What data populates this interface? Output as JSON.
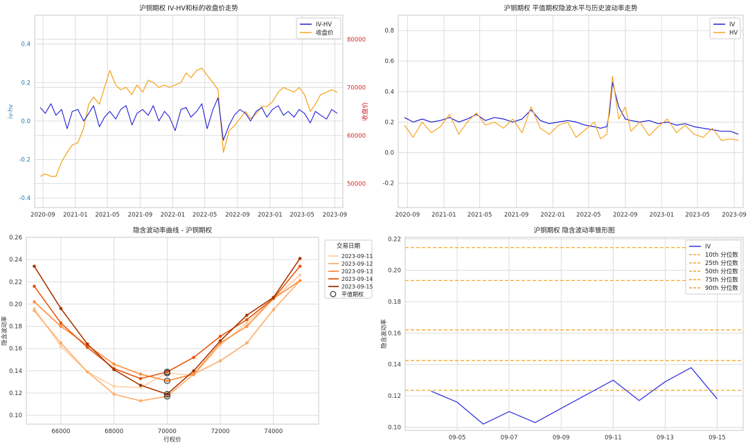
{
  "chart_data": [
    {
      "type": "line",
      "title": "沪铜期权 IV-HV和标的收盘价走势",
      "ylabel": "iv-hv",
      "y2label": "收盘价",
      "ylim": [
        -0.45,
        0.55
      ],
      "y2lim": [
        45000,
        85000
      ],
      "yticks": [
        -0.4,
        -0.2,
        0.0,
        0.2,
        0.4
      ],
      "y2ticks": [
        50000,
        60000,
        70000,
        80000
      ],
      "xlim": [
        "2020-08-01",
        "2023-10-01"
      ],
      "xticks": [
        "2020-09",
        "2021-01",
        "2021-05",
        "2021-09",
        "2022-01",
        "2022-05",
        "2022-09",
        "2023-01",
        "2023-05",
        "2023-09"
      ],
      "legend_position": "top-right",
      "colors": {
        "IV-HV": "#1f1fd6",
        "收盘价": "#f5a623",
        "axis_left": "#1f77b4",
        "axis_right": "#d62728"
      },
      "series": [
        {
          "name": "IV-HV",
          "axis": "left",
          "x": [
            "2020-08-22",
            "2020-09-10",
            "2020-10-01",
            "2020-10-20",
            "2020-11-10",
            "2020-12-01",
            "2020-12-20",
            "2021-01-10",
            "2021-02-01",
            "2021-02-20",
            "2021-03-10",
            "2021-04-01",
            "2021-04-20",
            "2021-05-10",
            "2021-06-01",
            "2021-06-20",
            "2021-07-10",
            "2021-08-01",
            "2021-08-20",
            "2021-09-10",
            "2021-10-01",
            "2021-10-20",
            "2021-11-10",
            "2021-12-01",
            "2021-12-20",
            "2022-01-10",
            "2022-02-01",
            "2022-02-20",
            "2022-03-10",
            "2022-04-01",
            "2022-04-20",
            "2022-05-10",
            "2022-06-01",
            "2022-06-20",
            "2022-07-10",
            "2022-08-01",
            "2022-08-20",
            "2022-09-10",
            "2022-10-01",
            "2022-10-20",
            "2022-11-10",
            "2022-12-01",
            "2022-12-20",
            "2023-01-10",
            "2023-02-01",
            "2023-02-20",
            "2023-03-10",
            "2023-04-01",
            "2023-04-20",
            "2023-05-10",
            "2023-06-01",
            "2023-06-20",
            "2023-07-10",
            "2023-08-01",
            "2023-08-20",
            "2023-09-10"
          ],
          "values": [
            0.07,
            0.04,
            0.09,
            0.03,
            0.06,
            -0.04,
            0.05,
            0.06,
            0.0,
            0.04,
            0.08,
            -0.03,
            0.02,
            0.05,
            0.01,
            0.06,
            0.08,
            -0.02,
            0.04,
            0.06,
            0.03,
            0.08,
            0.0,
            0.05,
            0.02,
            -0.05,
            0.06,
            0.07,
            0.02,
            0.05,
            0.09,
            -0.04,
            0.06,
            0.12,
            -0.1,
            -0.02,
            0.03,
            0.06,
            0.04,
            0.0,
            0.05,
            0.07,
            0.02,
            0.06,
            0.08,
            0.03,
            0.05,
            0.02,
            0.06,
            0.04,
            -0.01,
            0.05,
            0.03,
            0.01,
            0.06,
            0.04
          ]
        },
        {
          "name": "收盘价",
          "axis": "right",
          "x": [
            "2020-08-22",
            "2020-09-10",
            "2020-10-01",
            "2020-10-20",
            "2020-11-10",
            "2020-12-01",
            "2020-12-20",
            "2021-01-10",
            "2021-02-01",
            "2021-02-20",
            "2021-03-10",
            "2021-04-01",
            "2021-04-20",
            "2021-05-10",
            "2021-06-01",
            "2021-06-20",
            "2021-07-10",
            "2021-08-01",
            "2021-08-20",
            "2021-09-10",
            "2021-10-01",
            "2021-10-20",
            "2021-11-10",
            "2021-12-01",
            "2021-12-20",
            "2022-01-10",
            "2022-02-01",
            "2022-02-20",
            "2022-03-10",
            "2022-04-01",
            "2022-04-20",
            "2022-05-10",
            "2022-06-01",
            "2022-06-20",
            "2022-07-10",
            "2022-08-01",
            "2022-08-20",
            "2022-09-10",
            "2022-10-01",
            "2022-10-20",
            "2022-11-10",
            "2022-12-01",
            "2022-12-20",
            "2023-01-10",
            "2023-02-01",
            "2023-02-20",
            "2023-03-10",
            "2023-04-01",
            "2023-04-20",
            "2023-05-10",
            "2023-06-01",
            "2023-06-20",
            "2023-07-10",
            "2023-08-01",
            "2023-08-20",
            "2023-09-10"
          ],
          "values": [
            51500,
            52000,
            51500,
            51500,
            54500,
            56500,
            58000,
            58500,
            61500,
            66500,
            68000,
            66500,
            70000,
            73500,
            70500,
            69500,
            70000,
            68500,
            70500,
            69000,
            71500,
            71000,
            70000,
            70500,
            70000,
            70500,
            71000,
            73000,
            72000,
            73500,
            74000,
            72500,
            71000,
            69500,
            56500,
            61000,
            62000,
            63500,
            65000,
            63500,
            64500,
            66000,
            66000,
            67000,
            69000,
            70000,
            69500,
            69000,
            70000,
            68500,
            65000,
            66500,
            68500,
            69000,
            69500,
            69000
          ]
        }
      ]
    },
    {
      "type": "line",
      "title": "沪铜期权 平值期权隐波水平与历史波动率走势",
      "ylim": [
        -0.36,
        0.9
      ],
      "yticks": [
        -0.2,
        0.0,
        0.2,
        0.4,
        0.6,
        0.8
      ],
      "xlim": [
        "2020-08-01",
        "2023-10-01"
      ],
      "xticks": [
        "2020-09",
        "2021-01",
        "2021-05",
        "2021-09",
        "2022-01",
        "2022-05",
        "2022-09",
        "2023-01",
        "2023-05",
        "2023-09"
      ],
      "legend_position": "top-right",
      "colors": {
        "IV": "#1f1fd6",
        "HV": "#f5a623"
      },
      "series": [
        {
          "name": "IV",
          "x": [
            "2020-08-22",
            "2020-09-20",
            "2020-10-20",
            "2020-11-20",
            "2020-12-20",
            "2021-01-20",
            "2021-02-20",
            "2021-03-20",
            "2021-04-20",
            "2021-05-20",
            "2021-06-20",
            "2021-07-20",
            "2021-08-20",
            "2021-09-20",
            "2021-10-20",
            "2021-11-20",
            "2021-12-20",
            "2022-01-20",
            "2022-02-20",
            "2022-03-20",
            "2022-04-20",
            "2022-05-20",
            "2022-06-10",
            "2022-07-01",
            "2022-07-10",
            "2022-07-20",
            "2022-08-10",
            "2022-09-01",
            "2022-09-20",
            "2022-10-20",
            "2022-11-20",
            "2022-12-20",
            "2023-01-20",
            "2023-02-20",
            "2023-03-20",
            "2023-04-20",
            "2023-05-20",
            "2023-06-20",
            "2023-07-20",
            "2023-08-20",
            "2023-09-15"
          ],
          "values": [
            0.23,
            0.2,
            0.22,
            0.2,
            0.21,
            0.23,
            0.2,
            0.22,
            0.25,
            0.21,
            0.23,
            0.22,
            0.2,
            0.22,
            0.28,
            0.21,
            0.19,
            0.2,
            0.21,
            0.2,
            0.18,
            0.17,
            0.16,
            0.17,
            0.26,
            0.46,
            0.3,
            0.22,
            0.21,
            0.2,
            0.21,
            0.19,
            0.2,
            0.18,
            0.19,
            0.17,
            0.16,
            0.15,
            0.14,
            0.14,
            0.12
          ]
        },
        {
          "name": "HV",
          "x": [
            "2020-08-22",
            "2020-09-20",
            "2020-10-20",
            "2020-11-20",
            "2020-12-20",
            "2021-01-20",
            "2021-02-20",
            "2021-03-20",
            "2021-04-20",
            "2021-05-20",
            "2021-06-20",
            "2021-07-20",
            "2021-08-20",
            "2021-09-20",
            "2021-10-20",
            "2021-11-20",
            "2021-12-20",
            "2022-01-20",
            "2022-02-20",
            "2022-03-20",
            "2022-04-20",
            "2022-05-20",
            "2022-06-10",
            "2022-07-01",
            "2022-07-10",
            "2022-07-20",
            "2022-08-10",
            "2022-09-01",
            "2022-09-20",
            "2022-10-20",
            "2022-11-20",
            "2022-12-20",
            "2023-01-20",
            "2023-02-20",
            "2023-03-20",
            "2023-04-20",
            "2023-05-20",
            "2023-06-20",
            "2023-07-20",
            "2023-08-20",
            "2023-09-15"
          ],
          "values": [
            0.18,
            0.1,
            0.2,
            0.13,
            0.17,
            0.25,
            0.12,
            0.2,
            0.26,
            0.18,
            0.2,
            0.16,
            0.22,
            0.13,
            0.3,
            0.16,
            0.12,
            0.18,
            0.2,
            0.1,
            0.15,
            0.2,
            0.09,
            0.12,
            0.3,
            0.5,
            0.22,
            0.3,
            0.14,
            0.2,
            0.11,
            0.17,
            0.22,
            0.13,
            0.18,
            0.12,
            0.1,
            0.16,
            0.08,
            0.09,
            0.08
          ]
        }
      ]
    },
    {
      "type": "line",
      "title": "隐含波动率曲线 - 沪铜期权",
      "xlabel": "行权价",
      "ylabel": "隐含波动率",
      "xlim": [
        64700,
        75700
      ],
      "ylim": [
        0.092,
        0.26
      ],
      "xticks": [
        66000,
        68000,
        70000,
        72000,
        74000
      ],
      "yticks": [
        0.1,
        0.12,
        0.14,
        0.16,
        0.18,
        0.2,
        0.22,
        0.24,
        0.26
      ],
      "legend_title": "交易日期",
      "legend_position": "outside-right",
      "atm_label": "平值期权",
      "strikes": [
        65000,
        66000,
        67000,
        68000,
        69000,
        70000,
        71000,
        72000,
        73000,
        74000,
        75000
      ],
      "atm_strike": 70000,
      "series": [
        {
          "name": "2023-09-11",
          "color": "#fdd0a2",
          "values": [
            0.196,
            0.162,
            0.139,
            0.126,
            0.125,
            0.138,
            0.136,
            0.163,
            0.183,
            0.205,
            0.226
          ]
        },
        {
          "name": "2023-09-12",
          "color": "#fdae6b",
          "values": [
            0.194,
            0.165,
            0.139,
            0.119,
            0.113,
            0.117,
            0.137,
            0.149,
            0.165,
            0.195,
            0.221
          ]
        },
        {
          "name": "2023-09-13",
          "color": "#fd8d3c",
          "values": [
            0.202,
            0.18,
            0.163,
            0.146,
            0.137,
            0.131,
            0.137,
            0.165,
            0.18,
            0.205,
            0.221
          ]
        },
        {
          "name": "2023-09-14",
          "color": "#e6550d",
          "values": [
            0.216,
            0.183,
            0.161,
            0.142,
            0.133,
            0.139,
            0.152,
            0.171,
            0.186,
            0.205,
            0.234
          ]
        },
        {
          "name": "2023-09-15",
          "color": "#a63603",
          "values": [
            0.234,
            0.196,
            0.164,
            0.141,
            0.127,
            0.119,
            0.14,
            0.167,
            0.19,
            0.206,
            0.241
          ]
        }
      ]
    },
    {
      "type": "line",
      "title": "沪铜期权 隐含波动率锥形图",
      "ylabel": "隐含波动率",
      "ylim": [
        0.098,
        0.221
      ],
      "yticks": [
        0.1,
        0.12,
        0.14,
        0.16,
        0.18,
        0.2,
        0.22
      ],
      "xlim": [
        "2023-09-03",
        "2023-09-16"
      ],
      "xticks": [
        "09-05",
        "09-07",
        "09-09",
        "09-11",
        "09-13",
        "09-15"
      ],
      "legend_position": "top-right",
      "colors": {
        "IV": "#3434e0",
        "percentile": "#f5a623"
      },
      "series": [
        {
          "name": "IV",
          "x": [
            "2023-09-04",
            "2023-09-05",
            "2023-09-06",
            "2023-09-07",
            "2023-09-08",
            "2023-09-09",
            "2023-09-10",
            "2023-09-11",
            "2023-09-12",
            "2023-09-13",
            "2023-09-14",
            "2023-09-15"
          ],
          "values": [
            0.123,
            0.116,
            0.102,
            0.11,
            0.103,
            0.112,
            0.121,
            0.13,
            0.117,
            0.129,
            0.138,
            0.118
          ]
        }
      ],
      "percentiles": [
        {
          "name": "10th 分位数",
          "value": 0.1235
        },
        {
          "name": "25th 分位数",
          "value": 0.1425
        },
        {
          "name": "50th 分位数",
          "value": 0.162
        },
        {
          "name": "75th 分位数",
          "value": 0.1935
        },
        {
          "name": "90th 分位数",
          "value": 0.2145
        }
      ]
    }
  ]
}
